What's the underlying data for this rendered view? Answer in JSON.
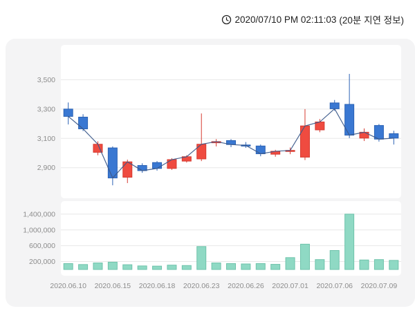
{
  "header": {
    "timestamp": "2020/07/10 PM 02:11:03",
    "delay_note": "(20분 지연 정보)"
  },
  "colors": {
    "panel_bg": "#f4f4f5",
    "plot_bg": "#ffffff",
    "grid": "#e8e8e8",
    "axis_text": "#8c8c8c",
    "up": "#ef4b40",
    "up_stroke": "#d63a30",
    "down": "#3a78d2",
    "down_stroke": "#2b62b4",
    "volume_fill": "#8fd9c4",
    "volume_stroke": "#6fc3ab",
    "close_line": "#3c5a8a",
    "icon": "#222222"
  },
  "chart_data": [
    {
      "type": "candlestick",
      "title": "Daily price (candles with close line overlay)",
      "categories": [
        "2020.06.10",
        "2020.06.11",
        "2020.06.12",
        "2020.06.15",
        "2020.06.16",
        "2020.06.17",
        "2020.06.18",
        "2020.06.19",
        "2020.06.22",
        "2020.06.23",
        "2020.06.24",
        "2020.06.25",
        "2020.06.26",
        "2020.06.29",
        "2020.06.30",
        "2020.07.01",
        "2020.07.02",
        "2020.07.03",
        "2020.07.06",
        "2020.07.07",
        "2020.07.08",
        "2020.07.09",
        "2020.07.10"
      ],
      "ohlc": [
        [
          3300,
          3345,
          3195,
          3250
        ],
        [
          3245,
          3265,
          3150,
          3165
        ],
        [
          3005,
          3080,
          2985,
          3060
        ],
        [
          3035,
          3045,
          2780,
          2830
        ],
        [
          2835,
          2955,
          2795,
          2940
        ],
        [
          2915,
          2930,
          2865,
          2880
        ],
        [
          2935,
          2945,
          2880,
          2895
        ],
        [
          2895,
          2965,
          2885,
          2955
        ],
        [
          2945,
          2985,
          2935,
          2975
        ],
        [
          2960,
          3270,
          2945,
          3060
        ],
        [
          3070,
          3095,
          3045,
          3078
        ],
        [
          3085,
          3095,
          3040,
          3058
        ],
        [
          3055,
          3075,
          3035,
          3052
        ],
        [
          3048,
          3058,
          2978,
          2995
        ],
        [
          2992,
          3022,
          2975,
          3012
        ],
        [
          3012,
          3038,
          2992,
          3018
        ],
        [
          2972,
          3300,
          2952,
          3185
        ],
        [
          3158,
          3232,
          3142,
          3212
        ],
        [
          3342,
          3362,
          3288,
          3302
        ],
        [
          3332,
          3540,
          3102,
          3122
        ],
        [
          3102,
          3168,
          3082,
          3142
        ],
        [
          3188,
          3198,
          3078,
          3095
        ],
        [
          3132,
          3152,
          3058,
          3102
        ]
      ],
      "yticks": [
        2900,
        3100,
        3300,
        3500
      ],
      "ylim": [
        2710,
        3700
      ],
      "xtick_indices": [
        0,
        3,
        6,
        9,
        12,
        15,
        18,
        21
      ],
      "xtick_labels": [
        "2020.06.10",
        "2020.06.15",
        "2020.06.18",
        "2020.06.23",
        "2020.06.26",
        "2020.07.01",
        "2020.07.06",
        "2020.07.09"
      ],
      "grid": "horizontal",
      "legend": "none"
    },
    {
      "type": "bar",
      "title": "Daily trading volume",
      "categories": [
        "2020.06.10",
        "2020.06.11",
        "2020.06.12",
        "2020.06.15",
        "2020.06.16",
        "2020.06.17",
        "2020.06.18",
        "2020.06.19",
        "2020.06.22",
        "2020.06.23",
        "2020.06.24",
        "2020.06.25",
        "2020.06.26",
        "2020.06.29",
        "2020.06.30",
        "2020.07.01",
        "2020.07.02",
        "2020.07.03",
        "2020.07.06",
        "2020.07.07",
        "2020.07.08",
        "2020.07.09",
        "2020.07.10"
      ],
      "values": [
        150000,
        125000,
        165000,
        185000,
        120000,
        90000,
        85000,
        110000,
        100000,
        580000,
        165000,
        150000,
        140000,
        150000,
        130000,
        300000,
        640000,
        250000,
        480000,
        1400000,
        240000,
        250000,
        230000
      ],
      "yticks": [
        200000,
        600000,
        1000000,
        1400000
      ],
      "ylim": [
        0,
        1660000
      ],
      "grid": "horizontal",
      "legend": "none"
    }
  ]
}
